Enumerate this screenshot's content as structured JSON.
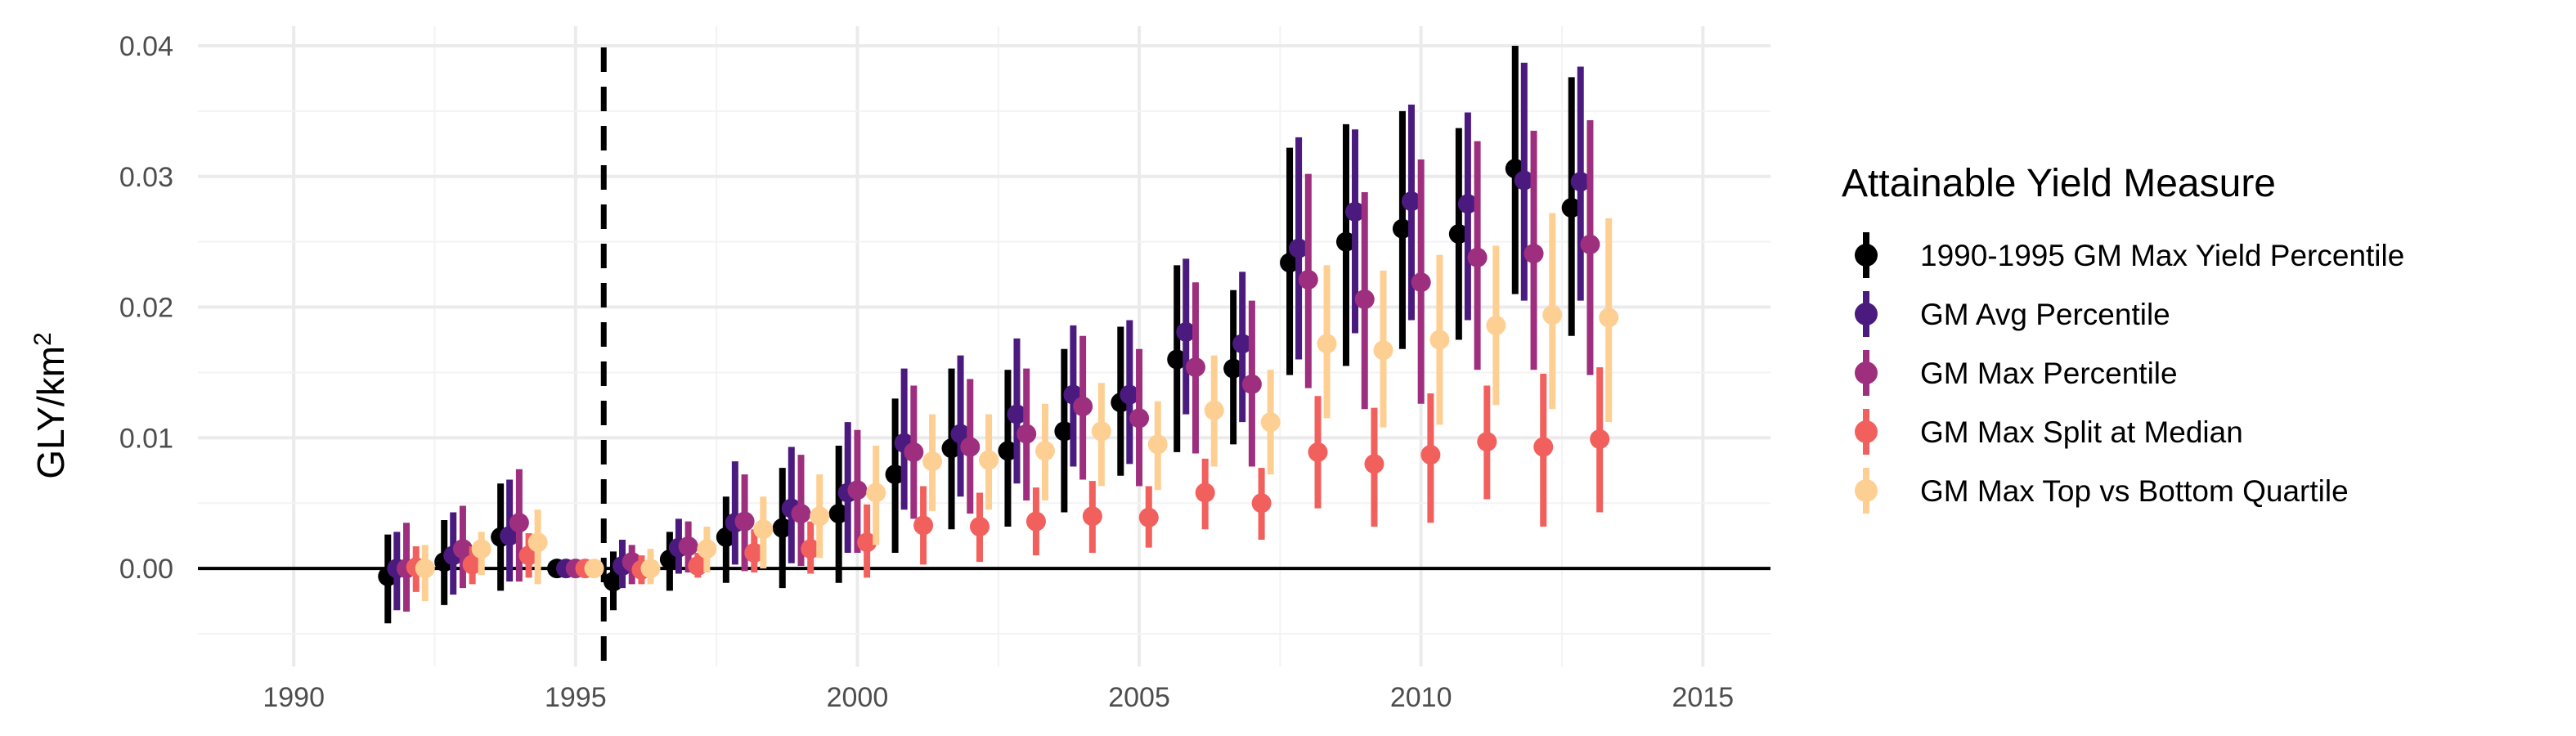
{
  "chart_data": {
    "type": "scatter",
    "subtype": "point-range (dodged)",
    "xlabel": "",
    "ylabel": "GLY/km",
    "ylabel_superscript": "2",
    "xlim": [
      1988.3,
      2016.2
    ],
    "ylim": [
      -0.0075,
      0.0415
    ],
    "x_ticks": [
      1990,
      1995,
      2000,
      2005,
      2010,
      2015
    ],
    "x_tick_labels": [
      "1990",
      "1995",
      "2000",
      "2005",
      "2010",
      "2015"
    ],
    "y_ticks": [
      0.0,
      0.01,
      0.02,
      0.03,
      0.04
    ],
    "y_tick_labels": [
      "0.00",
      "0.01",
      "0.02",
      "0.03",
      "0.04"
    ],
    "grid": true,
    "reference_lines": {
      "horizontal_y": 0.0,
      "vertical_dashed_x": 1995.5
    },
    "legend": {
      "title": "Attainable Yield Measure",
      "placement": "right"
    },
    "dodge_offsets": [
      -0.33,
      -0.17,
      0.0,
      0.17,
      0.33
    ],
    "x_years": [
      1992,
      1993,
      1994,
      1995,
      1996,
      1997,
      1998,
      1999,
      2000,
      2001,
      2002,
      2003,
      2004,
      2005,
      2006,
      2007,
      2008,
      2009,
      2010,
      2011,
      2012,
      2013
    ],
    "series": [
      {
        "name": "1990-1995 GM Max Yield Percentile",
        "color": "#000000",
        "y": [
          -0.0006,
          0.0005,
          0.0024,
          0.0,
          -0.001,
          0.0007,
          0.0024,
          0.0031,
          0.0042,
          0.0072,
          0.0092,
          0.009,
          0.0105,
          0.0127,
          0.016,
          0.0153,
          0.0234,
          0.025,
          0.026,
          0.0256,
          0.0306,
          0.0276
        ],
        "low": [
          -0.0042,
          -0.0028,
          -0.0017,
          0.0,
          -0.0032,
          -0.0017,
          -0.0011,
          -0.0015,
          -0.0011,
          0.0012,
          0.003,
          0.0032,
          0.0043,
          0.0071,
          0.0089,
          0.0095,
          0.0148,
          0.0155,
          0.0168,
          0.0175,
          0.021,
          0.0178
        ],
        "high": [
          0.0026,
          0.0037,
          0.0065,
          0.0,
          0.0013,
          0.0028,
          0.0055,
          0.0077,
          0.0094,
          0.013,
          0.0153,
          0.0152,
          0.0168,
          0.0185,
          0.0232,
          0.0213,
          0.0322,
          0.034,
          0.035,
          0.0337,
          0.04,
          0.0376
        ]
      },
      {
        "name": "GM Avg Percentile",
        "color": "#4b1a7f",
        "y": [
          0.0,
          0.001,
          0.0025,
          0.0,
          0.0002,
          0.0016,
          0.0035,
          0.0046,
          0.0058,
          0.0096,
          0.0103,
          0.0118,
          0.0133,
          0.0133,
          0.0181,
          0.0172,
          0.0245,
          0.0273,
          0.0281,
          0.0279,
          0.0297,
          0.0296
        ],
        "low": [
          -0.0032,
          -0.002,
          -0.001,
          0.0,
          -0.0015,
          -0.0004,
          0.0003,
          0.0004,
          0.0012,
          0.0045,
          0.0055,
          0.0065,
          0.0078,
          0.008,
          0.0118,
          0.0112,
          0.016,
          0.018,
          0.019,
          0.019,
          0.0205,
          0.0205
        ],
        "high": [
          0.0028,
          0.0043,
          0.0068,
          0.0,
          0.0022,
          0.0038,
          0.0082,
          0.0093,
          0.0112,
          0.0153,
          0.0163,
          0.0176,
          0.0186,
          0.019,
          0.0237,
          0.0227,
          0.033,
          0.0336,
          0.0355,
          0.0349,
          0.0387,
          0.0384
        ]
      },
      {
        "name": "GM Max Percentile",
        "color": "#9e2f7f",
        "y": [
          0.0,
          0.0015,
          0.0035,
          0.0,
          0.0005,
          0.0017,
          0.0036,
          0.0042,
          0.006,
          0.0089,
          0.0093,
          0.0103,
          0.0124,
          0.0115,
          0.0154,
          0.0141,
          0.0221,
          0.0206,
          0.0219,
          0.0238,
          0.0241,
          0.0248
        ],
        "low": [
          -0.0033,
          -0.0015,
          -0.001,
          0.0,
          -0.0012,
          -0.0003,
          -0.0002,
          0.0002,
          0.0012,
          0.0038,
          0.0042,
          0.0052,
          0.0068,
          0.0063,
          0.0088,
          0.0078,
          0.0138,
          0.0122,
          0.0126,
          0.0152,
          0.0152,
          0.0148
        ],
        "high": [
          0.0035,
          0.0048,
          0.0076,
          0.0,
          0.0018,
          0.0036,
          0.0072,
          0.0087,
          0.0106,
          0.014,
          0.0145,
          0.0153,
          0.0178,
          0.0168,
          0.0219,
          0.0205,
          0.0302,
          0.0288,
          0.0313,
          0.0327,
          0.0335,
          0.0343
        ]
      },
      {
        "name": "GM Max Split at Median",
        "color": "#f1605d",
        "y": [
          0.0001,
          0.0003,
          0.001,
          0.0,
          -0.0001,
          0.0002,
          0.0012,
          0.0015,
          0.002,
          0.0033,
          0.0032,
          0.0036,
          0.004,
          0.0039,
          0.0058,
          0.005,
          0.0089,
          0.008,
          0.0087,
          0.0097,
          0.0093,
          0.0099
        ],
        "low": [
          -0.0018,
          -0.0012,
          -0.0007,
          0.0,
          -0.0012,
          -0.0007,
          -0.0003,
          -0.0004,
          -0.0007,
          0.0003,
          0.0005,
          0.001,
          0.0012,
          0.0016,
          0.003,
          0.0022,
          0.0046,
          0.0032,
          0.0035,
          0.0053,
          0.0032,
          0.0043
        ],
        "high": [
          0.0017,
          0.0017,
          0.0027,
          0.0,
          0.001,
          0.0012,
          0.003,
          0.0036,
          0.0049,
          0.0063,
          0.0058,
          0.0062,
          0.0067,
          0.0063,
          0.0084,
          0.0077,
          0.0132,
          0.0123,
          0.0134,
          0.014,
          0.0149,
          0.0154
        ]
      },
      {
        "name": "GM Max Top vs Bottom Quartile",
        "color": "#fecf92",
        "y": [
          0.0,
          0.0015,
          0.002,
          0.0,
          0.0,
          0.0015,
          0.003,
          0.004,
          0.0058,
          0.0082,
          0.0083,
          0.009,
          0.0105,
          0.0095,
          0.0121,
          0.0112,
          0.0172,
          0.0167,
          0.0175,
          0.0186,
          0.0194,
          0.0192
        ],
        "low": [
          -0.0025,
          -0.0005,
          -0.0012,
          0.0,
          -0.0012,
          -0.0003,
          0.0,
          0.0008,
          0.0018,
          0.0044,
          0.0045,
          0.0052,
          0.0063,
          0.006,
          0.0078,
          0.0072,
          0.0115,
          0.0108,
          0.011,
          0.0125,
          0.0122,
          0.0112
        ],
        "high": [
          0.0018,
          0.0028,
          0.0045,
          0.0,
          0.0015,
          0.0032,
          0.0055,
          0.0072,
          0.0094,
          0.0118,
          0.0118,
          0.0126,
          0.0142,
          0.0128,
          0.0163,
          0.0152,
          0.0232,
          0.0228,
          0.024,
          0.0247,
          0.0272,
          0.0268
        ]
      }
    ]
  }
}
